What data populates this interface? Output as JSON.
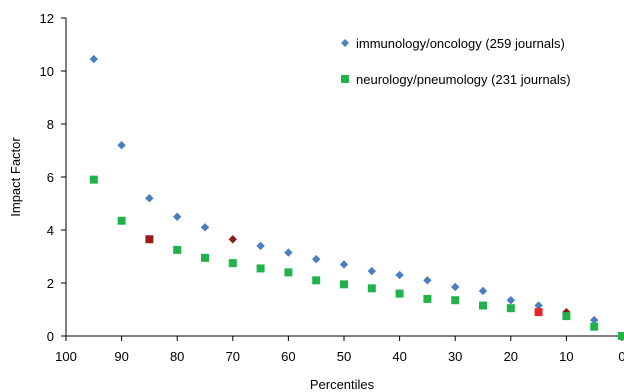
{
  "chart_data": {
    "type": "scatter",
    "xlabel": "Percentiles",
    "ylabel": "Impact Factor",
    "xlim": [
      100,
      0
    ],
    "ylim": [
      0,
      12
    ],
    "x_reversed": true,
    "xticks": [
      "100",
      "90",
      "80",
      "70",
      "60",
      "50",
      "40",
      "30",
      "20",
      "10",
      "0"
    ],
    "yticks": [
      "0",
      "2",
      "4",
      "6",
      "8",
      "10",
      "12"
    ],
    "grid": false,
    "legend_position": "top-right",
    "series": [
      {
        "name": "immunology/oncology (259 journals)",
        "marker": "diamond",
        "color": "#4a7ebf",
        "highlight_color": "#8b1a1a",
        "points": [
          {
            "x": 95,
            "y": 10.45
          },
          {
            "x": 90,
            "y": 7.2
          },
          {
            "x": 85,
            "y": 5.2
          },
          {
            "x": 80,
            "y": 4.5
          },
          {
            "x": 75,
            "y": 4.1
          },
          {
            "x": 70,
            "y": 3.65,
            "highlight": true
          },
          {
            "x": 65,
            "y": 3.4
          },
          {
            "x": 60,
            "y": 3.15
          },
          {
            "x": 55,
            "y": 2.9
          },
          {
            "x": 50,
            "y": 2.7
          },
          {
            "x": 45,
            "y": 2.45
          },
          {
            "x": 40,
            "y": 2.3
          },
          {
            "x": 35,
            "y": 2.1
          },
          {
            "x": 30,
            "y": 1.85
          },
          {
            "x": 25,
            "y": 1.7
          },
          {
            "x": 20,
            "y": 1.35
          },
          {
            "x": 15,
            "y": 1.15
          },
          {
            "x": 10,
            "y": 0.9,
            "highlight": true
          },
          {
            "x": 5,
            "y": 0.6
          }
        ]
      },
      {
        "name": "neurology/pneumology (231 journals)",
        "marker": "square",
        "color": "#22b24c",
        "highlight_color": "#9e1b1b",
        "points": [
          {
            "x": 95,
            "y": 5.9
          },
          {
            "x": 90,
            "y": 4.35
          },
          {
            "x": 85,
            "y": 3.65,
            "highlight": true
          },
          {
            "x": 80,
            "y": 3.25
          },
          {
            "x": 75,
            "y": 2.95
          },
          {
            "x": 70,
            "y": 2.75
          },
          {
            "x": 65,
            "y": 2.55
          },
          {
            "x": 60,
            "y": 2.4
          },
          {
            "x": 55,
            "y": 2.1
          },
          {
            "x": 50,
            "y": 1.95
          },
          {
            "x": 45,
            "y": 1.8
          },
          {
            "x": 40,
            "y": 1.6
          },
          {
            "x": 35,
            "y": 1.4
          },
          {
            "x": 30,
            "y": 1.35
          },
          {
            "x": 25,
            "y": 1.15
          },
          {
            "x": 20,
            "y": 1.05
          },
          {
            "x": 15,
            "y": 0.9,
            "highlight": true,
            "highlight_color": "#e8242a"
          },
          {
            "x": 10,
            "y": 0.75
          },
          {
            "x": 5,
            "y": 0.35
          },
          {
            "x": 0,
            "y": 0.0
          }
        ]
      }
    ]
  }
}
